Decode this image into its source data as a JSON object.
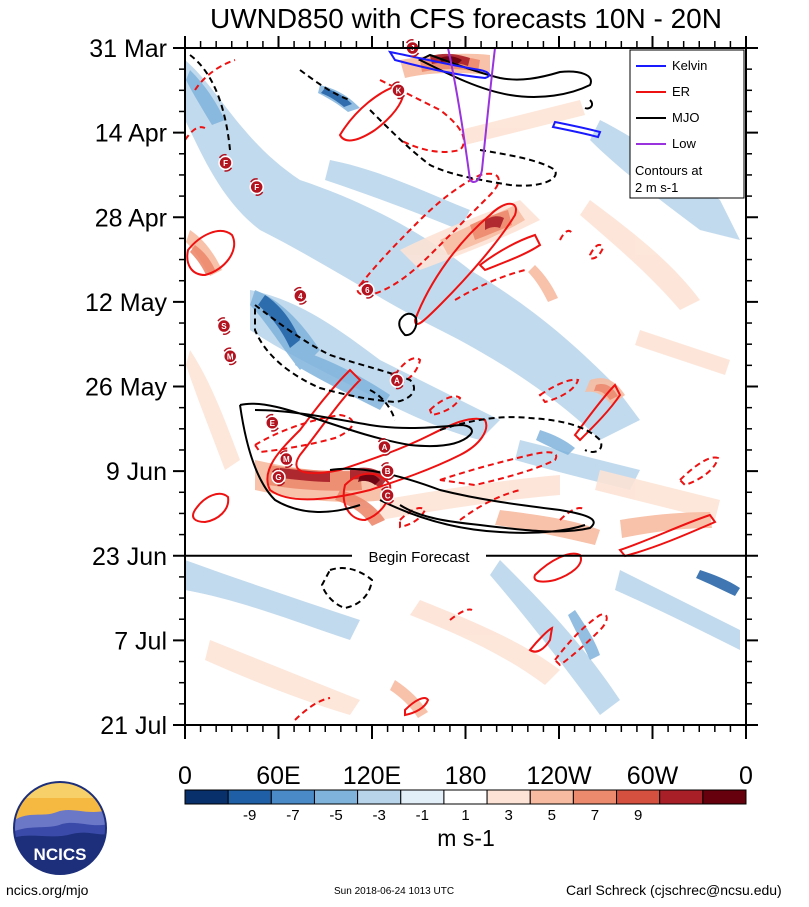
{
  "chart_data": {
    "type": "heatmap",
    "title": "UWND850 with CFS forecasts  10N - 20N",
    "y_ticks": [
      "31 Mar",
      "14 Apr",
      "28 Apr",
      "12 May",
      "26 May",
      "9 Jun",
      "23 Jun",
      "7 Jul",
      "21 Jul"
    ],
    "x_ticks": [
      "0",
      "60E",
      "120E",
      "180",
      "120W",
      "60W",
      "0"
    ],
    "x_range": [
      0,
      360
    ],
    "forecast_label": "Begin Forecast",
    "forecast_date": "23 Jun",
    "legend": {
      "items": [
        {
          "label": "Kelvin",
          "color": "#1a1aff"
        },
        {
          "label": "ER",
          "color": "#ee1111"
        },
        {
          "label": "MJO",
          "color": "#000000"
        },
        {
          "label": "Low",
          "color": "#9933dd"
        }
      ],
      "note_line1": "Contours at",
      "note_line2": "2 m s-1"
    },
    "colorbar": {
      "labels": [
        "-9",
        "-7",
        "-5",
        "-3",
        "-1",
        "1",
        "3",
        "5",
        "7",
        "9"
      ],
      "colors": [
        "#08306b",
        "#1f5fa5",
        "#4a8bc7",
        "#80b3dc",
        "#b7d4ea",
        "#e2eef8",
        "#ffffff",
        "#fde3d6",
        "#f7bba1",
        "#ec8a6e",
        "#d5503f",
        "#a81f28",
        "#67000d"
      ],
      "unit": "m s-1"
    },
    "storm_markers": [
      {
        "label": "J",
        "lon": 146,
        "day": 0
      },
      {
        "label": "K",
        "lon": 137,
        "day": 7
      },
      {
        "label": "F",
        "lon": 26,
        "day": 19
      },
      {
        "label": "F",
        "lon": 46,
        "day": 23
      },
      {
        "label": "4",
        "lon": 74,
        "day": 41
      },
      {
        "label": "6",
        "lon": 117,
        "day": 40
      },
      {
        "label": "S",
        "lon": 25,
        "day": 46
      },
      {
        "label": "M",
        "lon": 29,
        "day": 51
      },
      {
        "label": "A",
        "lon": 136,
        "day": 55
      },
      {
        "label": "E",
        "lon": 56,
        "day": 62
      },
      {
        "label": "A",
        "lon": 128,
        "day": 66
      },
      {
        "label": "M",
        "lon": 65,
        "day": 68
      },
      {
        "label": "B",
        "lon": 130,
        "day": 70
      },
      {
        "label": "G",
        "lon": 60,
        "day": 71
      },
      {
        "label": "C",
        "lon": 130,
        "day": 74
      }
    ]
  },
  "footer": {
    "site": "ncics.org/mjo",
    "timestamp": "Sun 2018-06-24 1013 UTC",
    "author": "Carl Schreck (cjschrec@ncsu.edu)",
    "logo_text": "NCICS"
  }
}
